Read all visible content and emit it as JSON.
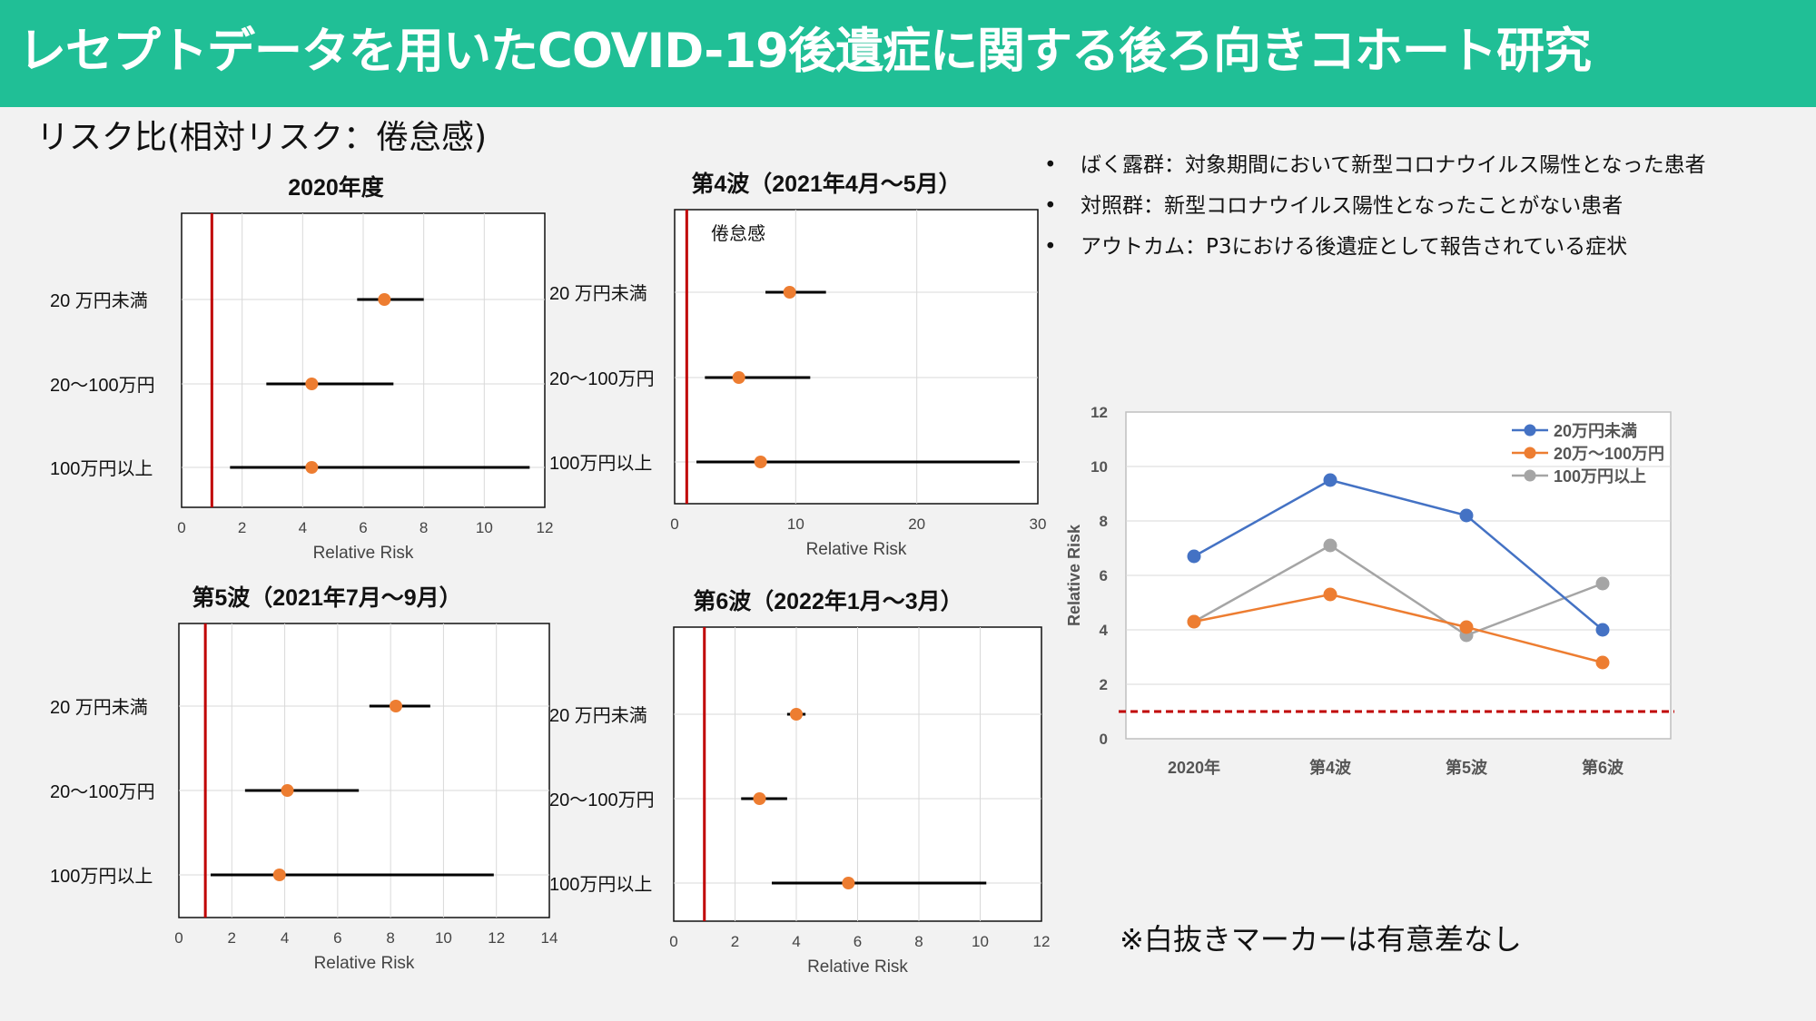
{
  "header": {
    "title": "レセプトデータを用いたCOVID-19後遺症に関する後ろ向きコホート研究",
    "subtitle": "リスク比(相対リスク：倦怠感)"
  },
  "definitions": [
    "ばく露群：対象期間において新型コロナウイルス陽性となった患者",
    "対照群：新型コロナウイルス陽性となったことがない患者",
    "アウトカム：P3における後遺症として報告されている症状"
  ],
  "bullet_symbol": "•",
  "note": "※白抜きマーカーは有意差なし",
  "colors": {
    "banner": "#20bf96",
    "point": "#ed7d31",
    "reference_line": "#c00000",
    "series_blue": "#4472c4",
    "series_orange": "#ed7d31",
    "series_gray": "#a5a5a5"
  },
  "chart_data": [
    {
      "type": "forest",
      "title": "2020年度",
      "xlabel": "Relative Risk",
      "xlim": [
        0,
        12
      ],
      "xticks": [
        0,
        2,
        4,
        6,
        8,
        10,
        12
      ],
      "reference_line": 1,
      "categories": [
        "20 万円未満",
        "20〜100万円",
        "100万円以上"
      ],
      "estimates": [
        6.7,
        4.3,
        4.3
      ],
      "ci_low": [
        5.8,
        2.8,
        1.6
      ],
      "ci_high": [
        8.0,
        7.0,
        11.5
      ]
    },
    {
      "type": "forest",
      "title": "第4波（2021年4月〜5月）",
      "annotation": "倦怠感",
      "xlabel": "Relative Risk",
      "xlim": [
        0,
        30
      ],
      "xticks": [
        0,
        10,
        20,
        30
      ],
      "reference_line": 1,
      "categories": [
        "20 万円未満",
        "20〜100万円",
        "100万円以上"
      ],
      "estimates": [
        9.5,
        5.3,
        7.1
      ],
      "ci_low": [
        7.5,
        2.5,
        1.8
      ],
      "ci_high": [
        12.5,
        11.2,
        28.5
      ]
    },
    {
      "type": "forest",
      "title": "第5波（2021年7月〜9月）",
      "xlabel": "Relative Risk",
      "xlim": [
        0,
        14
      ],
      "xticks": [
        0,
        2,
        4,
        6,
        8,
        10,
        12,
        14
      ],
      "reference_line": 1,
      "categories": [
        "20 万円未満",
        "20〜100万円",
        "100万円以上"
      ],
      "estimates": [
        8.2,
        4.1,
        3.8
      ],
      "ci_low": [
        7.2,
        2.5,
        1.2
      ],
      "ci_high": [
        9.5,
        6.8,
        11.9
      ]
    },
    {
      "type": "forest",
      "title": "第6波（2022年1月〜3月）",
      "xlabel": "Relative Risk",
      "xlim": [
        0,
        12
      ],
      "xticks": [
        0,
        2,
        4,
        6,
        8,
        10,
        12
      ],
      "reference_line": 1,
      "categories": [
        "20 万円未満",
        "20〜100万円",
        "100万円以上"
      ],
      "estimates": [
        4.0,
        2.8,
        5.7
      ],
      "ci_low": [
        3.7,
        2.2,
        3.2
      ],
      "ci_high": [
        4.3,
        3.7,
        10.2
      ]
    },
    {
      "type": "line",
      "ylabel": "Relative Risk",
      "ylim": [
        0,
        12
      ],
      "yticks": [
        0,
        2,
        4,
        6,
        8,
        10,
        12
      ],
      "categories": [
        "2020年",
        "第4波",
        "第5波",
        "第6波"
      ],
      "reference_line": 1,
      "legend_position": "top-right",
      "series": [
        {
          "name": "20万円未満",
          "color": "#4472c4",
          "values": [
            6.7,
            9.5,
            8.2,
            4.0
          ]
        },
        {
          "name": "20万〜100万円",
          "color": "#ed7d31",
          "values": [
            4.3,
            5.3,
            4.1,
            2.8
          ]
        },
        {
          "name": "100万円以上",
          "color": "#a5a5a5",
          "values": [
            4.3,
            7.1,
            3.8,
            5.7
          ]
        }
      ]
    }
  ]
}
